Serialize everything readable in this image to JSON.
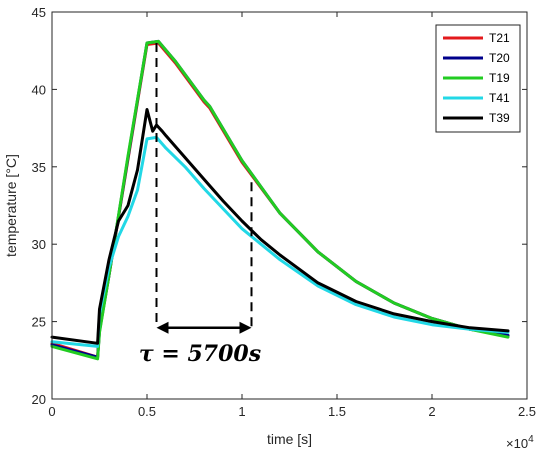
{
  "chart_data": {
    "type": "line",
    "xlabel": "time [s]",
    "ylabel": "temperature [°C]",
    "x_multiplier_label": "×10",
    "x_multiplier_exp": "4",
    "xlim": [
      0,
      25000
    ],
    "ylim": [
      20,
      45
    ],
    "xticks": [
      {
        "value": 0,
        "label": "0"
      },
      {
        "value": 5000,
        "label": "0.5"
      },
      {
        "value": 10000,
        "label": "1"
      },
      {
        "value": 15000,
        "label": "1.5"
      },
      {
        "value": 20000,
        "label": "2"
      },
      {
        "value": 25000,
        "label": "2.5"
      }
    ],
    "yticks": [
      {
        "value": 20,
        "label": "20"
      },
      {
        "value": 25,
        "label": "25"
      },
      {
        "value": 30,
        "label": "30"
      },
      {
        "value": 35,
        "label": "35"
      },
      {
        "value": 40,
        "label": "40"
      },
      {
        "value": 45,
        "label": "45"
      }
    ],
    "grid": false,
    "legend_position": "top-right",
    "series": [
      {
        "name": "T21",
        "color": "#e31a1c",
        "x": [
          0,
          2400,
          2500,
          3000,
          4000,
          5000,
          5600,
          6500,
          8000,
          8300,
          10000,
          12000,
          14000,
          16000,
          18000,
          20000,
          22000,
          24000
        ],
        "y": [
          23.6,
          22.7,
          24.5,
          28,
          35.5,
          42.9,
          43.0,
          41.7,
          39.2,
          38.8,
          35.3,
          32.0,
          29.5,
          27.6,
          26.2,
          25.2,
          24.5,
          24.1
        ]
      },
      {
        "name": "T20",
        "color": "#00008b",
        "x": [
          0,
          2400,
          2500,
          3000,
          4000,
          5000,
          5600,
          6500,
          8000,
          8300,
          10000,
          12000,
          14000,
          16000,
          18000,
          20000,
          22000,
          24000
        ],
        "y": [
          23.5,
          22.7,
          24.4,
          28,
          35.6,
          43.0,
          43.1,
          41.8,
          39.3,
          38.9,
          35.4,
          32.0,
          29.5,
          27.6,
          26.2,
          25.2,
          24.5,
          24.1
        ]
      },
      {
        "name": "T19",
        "color": "#22cc22",
        "x": [
          0,
          2400,
          2500,
          3000,
          4000,
          5000,
          5600,
          6500,
          8000,
          8300,
          10000,
          12000,
          14000,
          16000,
          18000,
          20000,
          22000,
          24000
        ],
        "y": [
          23.4,
          22.6,
          24.3,
          28,
          35.7,
          43.0,
          43.1,
          41.8,
          39.3,
          38.9,
          35.4,
          32.0,
          29.5,
          27.6,
          26.2,
          25.2,
          24.5,
          24.0
        ]
      },
      {
        "name": "T41",
        "color": "#22d8e6",
        "x": [
          0,
          2400,
          2500,
          3000,
          3500,
          4000,
          4500,
          5000,
          5500,
          6000,
          7000,
          8000,
          9000,
          10000,
          11000,
          12000,
          14000,
          16000,
          18000,
          20000,
          22000,
          24000
        ],
        "y": [
          23.7,
          23.4,
          25.5,
          28.5,
          30.5,
          31.8,
          33.5,
          36.8,
          36.9,
          36.2,
          35.0,
          33.6,
          32.3,
          31.0,
          30.0,
          29.0,
          27.3,
          26.1,
          25.3,
          24.8,
          24.5,
          24.3
        ]
      },
      {
        "name": "T39",
        "color": "#000000",
        "x": [
          0,
          2400,
          2500,
          3000,
          3500,
          4000,
          4500,
          5000,
          5300,
          5500,
          5800,
          6000,
          7000,
          8000,
          9000,
          10000,
          11000,
          12000,
          14000,
          16000,
          18000,
          20000,
          22000,
          24000
        ],
        "y": [
          24.0,
          23.6,
          25.8,
          29.0,
          31.5,
          32.5,
          34.8,
          38.7,
          37.3,
          37.7,
          37.3,
          37.0,
          35.6,
          34.2,
          32.8,
          31.5,
          30.3,
          29.3,
          27.5,
          26.3,
          25.5,
          25.0,
          24.6,
          24.4
        ]
      }
    ],
    "annotation": {
      "label": "τ = 5700s",
      "x_start": 5500,
      "x_end": 10500,
      "arrow_y": 24.6,
      "dash_start_top_y": 43.0,
      "dash_end_top_y": 34.0
    }
  }
}
